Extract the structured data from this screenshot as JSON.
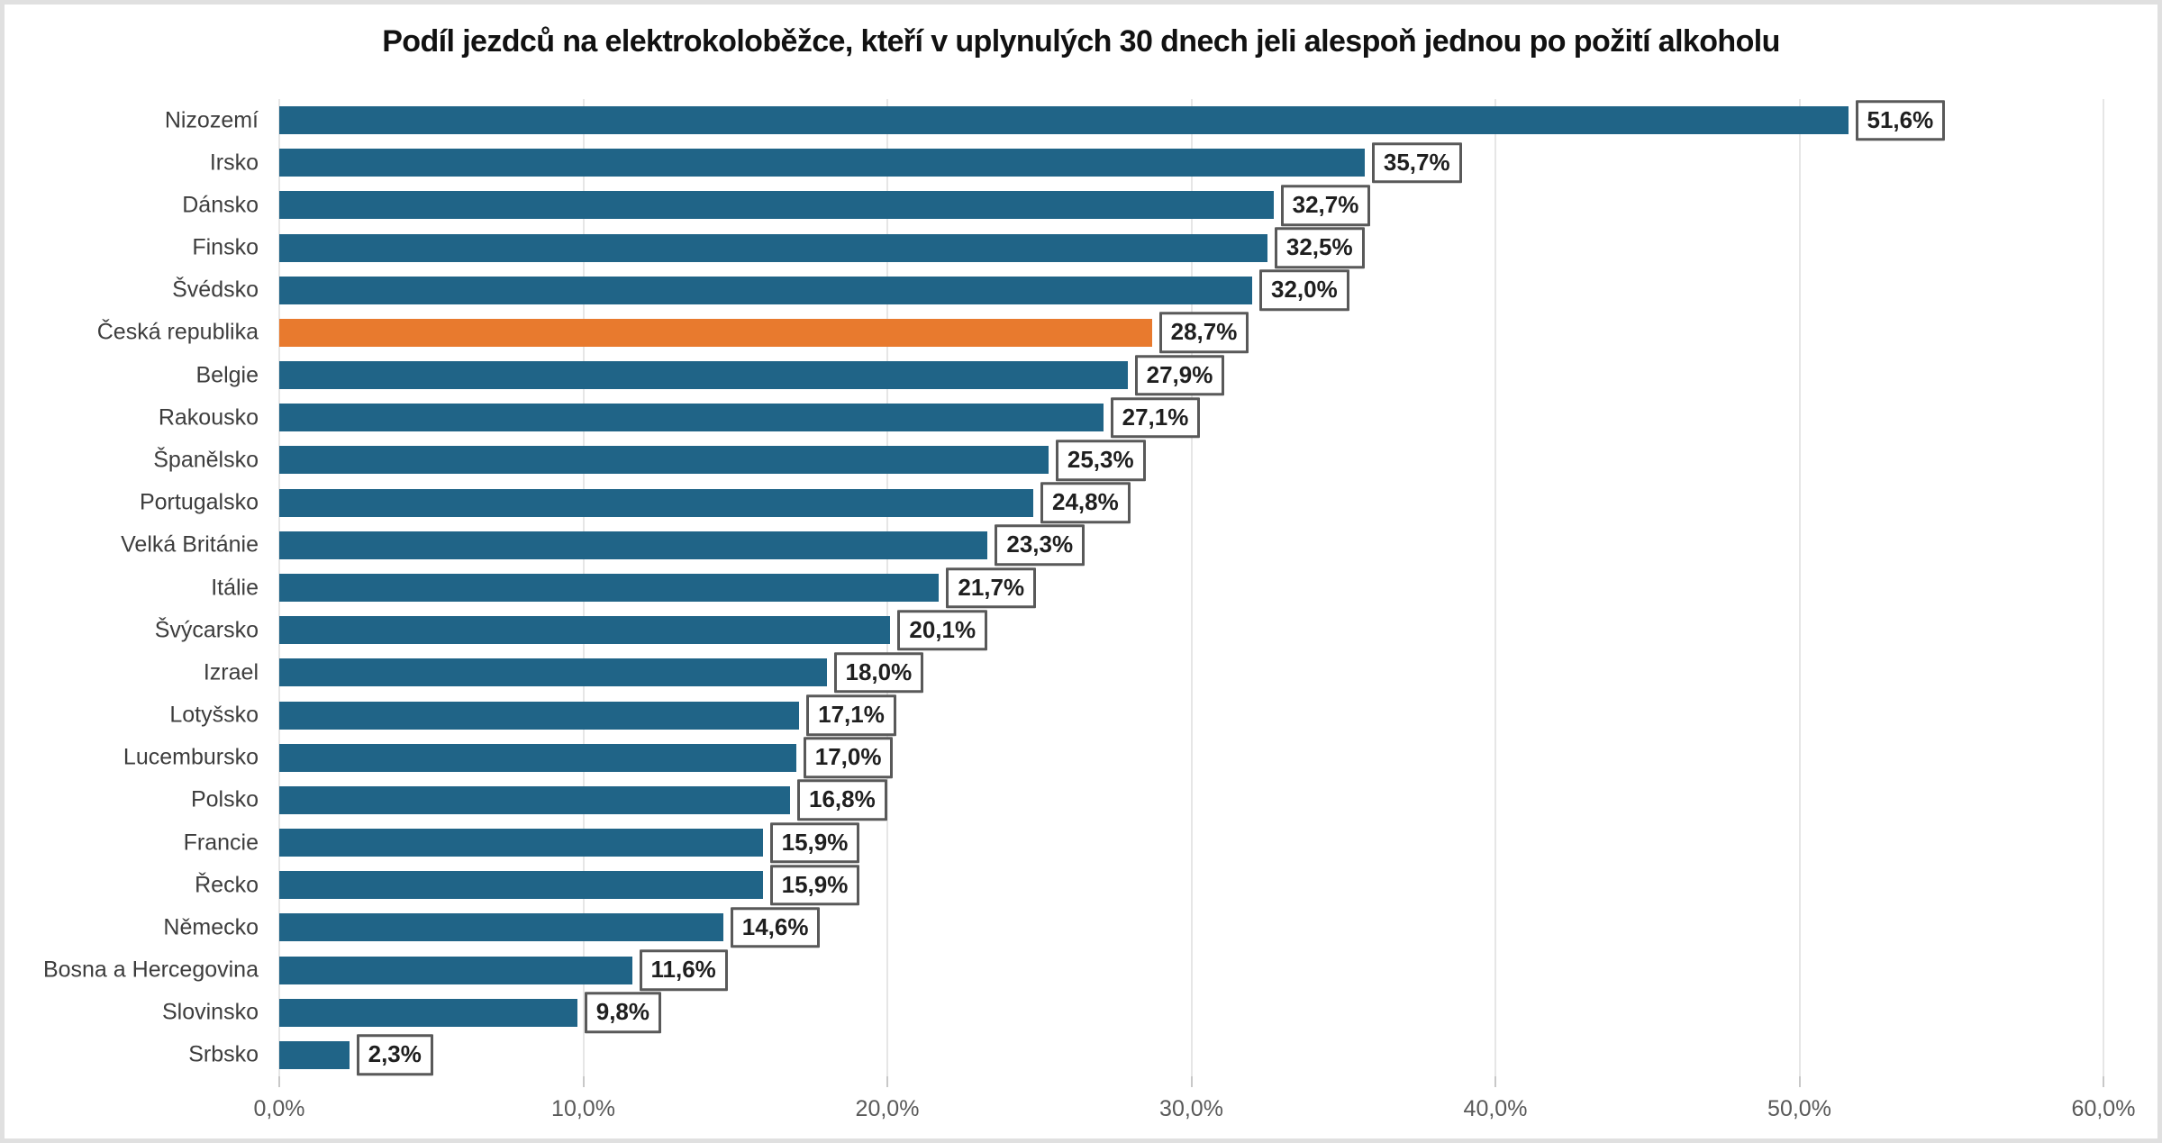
{
  "chart_data": {
    "type": "bar",
    "orientation": "horizontal",
    "title": "Podíl jezdců na elektrokoloběžce, kteří v uplynulých 30 dnech jeli alespoň jednou po požití alkoholu",
    "categories": [
      "Nizozemí",
      "Irsko",
      "Dánsko",
      "Finsko",
      "Švédsko",
      "Česká republika",
      "Belgie",
      "Rakousko",
      "Španělsko",
      "Portugalsko",
      "Velká Británie",
      "Itálie",
      "Švýcarsko",
      "Izrael",
      "Lotyšsko",
      "Lucembursko",
      "Polsko",
      "Francie",
      "Řecko",
      "Německo",
      "Bosna a Hercegovina",
      "Slovinsko",
      "Srbsko"
    ],
    "values": [
      51.6,
      35.7,
      32.7,
      32.5,
      32.0,
      28.7,
      27.9,
      27.1,
      25.3,
      24.8,
      23.3,
      21.7,
      20.1,
      18.0,
      17.1,
      17.0,
      16.8,
      15.9,
      15.9,
      14.6,
      11.6,
      9.8,
      2.3
    ],
    "value_labels": [
      "51,6%",
      "35,7%",
      "32,7%",
      "32,5%",
      "32,0%",
      "28,7%",
      "27,9%",
      "27,1%",
      "25,3%",
      "24,8%",
      "23,3%",
      "21,7%",
      "20,1%",
      "18,0%",
      "17,1%",
      "17,0%",
      "16,8%",
      "15,9%",
      "15,9%",
      "14,6%",
      "11,6%",
      "9,8%",
      "2,3%"
    ],
    "highlight_category": "Česká republika",
    "highlight_index": 5,
    "x_axis": {
      "tick_labels": [
        "0,0%",
        "10,0%",
        "20,0%",
        "30,0%",
        "40,0%",
        "50,0%",
        "60,0%"
      ],
      "tick_values": [
        0,
        10,
        20,
        30,
        40,
        50,
        60
      ],
      "min": 0,
      "max": 60,
      "grid": true
    },
    "ylabel": "",
    "xlabel": "",
    "legend": "none",
    "colors": {
      "bar": "#206487",
      "highlight": "#e87a2e",
      "label_box_border": "#595959",
      "label_text": "#1f1f1f",
      "gridline": "#e6e6e6",
      "tick": "#c8c8c8",
      "axis_text": "#595959",
      "category_text": "#3d3d3d",
      "figure_border": "#e0e0e0",
      "background": "#ffffff"
    }
  }
}
